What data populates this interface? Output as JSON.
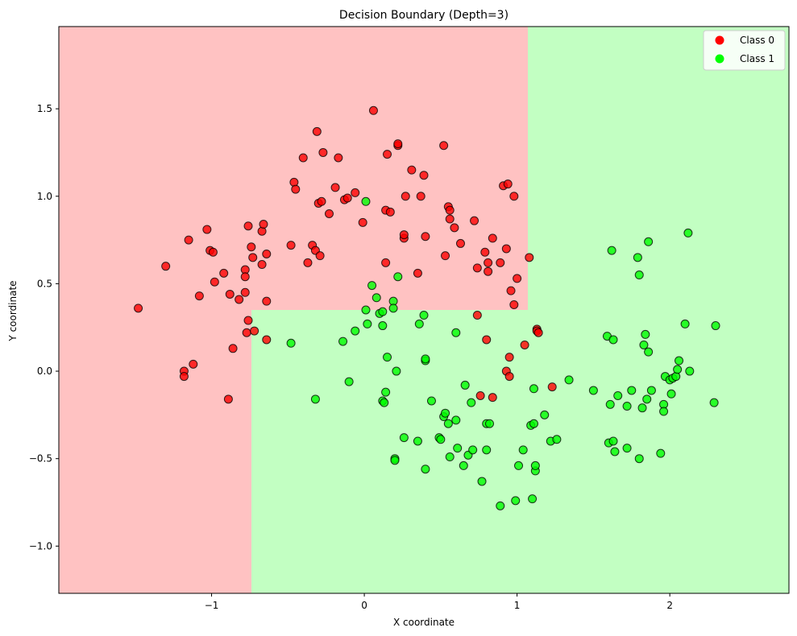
{
  "chart_data": {
    "type": "scatter",
    "title": "Decision Boundary (Depth=3)",
    "xlabel": "X coordinate",
    "ylabel": "Y coordinate",
    "xlim": [
      -2.0,
      2.78
    ],
    "ylim": [
      -1.27,
      1.97
    ],
    "xticks": [
      -1,
      0,
      1,
      2
    ],
    "xtick_labels": [
      "−1",
      "0",
      "1",
      "2"
    ],
    "yticks": [
      -1.0,
      -0.5,
      0.0,
      0.5,
      1.0,
      1.5
    ],
    "ytick_labels": [
      "−1.0",
      "−0.5",
      "0.0",
      "0.5",
      "1.0",
      "1.5"
    ],
    "grid": false,
    "legend_position": "top-right",
    "colors": {
      "class0": "#ff0000",
      "class1": "#00ff00",
      "region0": "#ffc2c2",
      "region1": "#c2ffc2"
    },
    "regions": [
      {
        "class": 0,
        "x": [
          -2.0,
          -0.74
        ],
        "y": [
          -1.27,
          1.97
        ]
      },
      {
        "class": 0,
        "x": [
          -0.74,
          1.07
        ],
        "y": [
          0.35,
          1.97
        ]
      },
      {
        "class": 1,
        "x": [
          1.07,
          2.78
        ],
        "y": [
          -1.27,
          1.97
        ]
      },
      {
        "class": 1,
        "x": [
          -0.74,
          1.07
        ],
        "y": [
          -1.27,
          0.35
        ]
      }
    ],
    "series": [
      {
        "name": "Class 0",
        "points": [
          [
            -1.48,
            0.36
          ],
          [
            -1.3,
            0.6
          ],
          [
            -1.18,
            0.0
          ],
          [
            -1.18,
            -0.03
          ],
          [
            -1.12,
            0.04
          ],
          [
            -1.15,
            0.75
          ],
          [
            -1.08,
            0.43
          ],
          [
            -1.03,
            0.81
          ],
          [
            -1.01,
            0.69
          ],
          [
            -0.99,
            0.68
          ],
          [
            -0.98,
            0.51
          ],
          [
            -0.92,
            0.56
          ],
          [
            -0.88,
            0.44
          ],
          [
            -0.89,
            -0.16
          ],
          [
            -0.86,
            0.13
          ],
          [
            -0.82,
            0.41
          ],
          [
            -0.78,
            0.58
          ],
          [
            -0.78,
            0.54
          ],
          [
            -0.78,
            0.45
          ],
          [
            -0.77,
            0.22
          ],
          [
            -0.76,
            0.29
          ],
          [
            -0.76,
            0.83
          ],
          [
            -0.74,
            0.71
          ],
          [
            -0.73,
            0.65
          ],
          [
            -0.72,
            0.23
          ],
          [
            -0.67,
            0.8
          ],
          [
            -0.66,
            0.84
          ],
          [
            -0.67,
            0.61
          ],
          [
            -0.64,
            0.67
          ],
          [
            -0.64,
            0.4
          ],
          [
            -0.64,
            0.18
          ],
          [
            -0.48,
            0.72
          ],
          [
            -0.46,
            1.08
          ],
          [
            -0.45,
            1.04
          ],
          [
            -0.4,
            1.22
          ],
          [
            -0.37,
            0.62
          ],
          [
            -0.34,
            0.72
          ],
          [
            -0.32,
            0.69
          ],
          [
            -0.31,
            1.37
          ],
          [
            -0.3,
            0.96
          ],
          [
            -0.28,
            0.97
          ],
          [
            -0.29,
            0.66
          ],
          [
            -0.27,
            1.25
          ],
          [
            -0.23,
            0.9
          ],
          [
            -0.19,
            1.05
          ],
          [
            -0.17,
            1.22
          ],
          [
            -0.13,
            0.98
          ],
          [
            -0.11,
            0.99
          ],
          [
            -0.06,
            1.02
          ],
          [
            -0.01,
            0.85
          ],
          [
            0.06,
            1.49
          ],
          [
            0.14,
            0.62
          ],
          [
            0.14,
            0.92
          ],
          [
            0.15,
            1.24
          ],
          [
            0.17,
            0.91
          ],
          [
            0.22,
            1.29
          ],
          [
            0.22,
            1.3
          ],
          [
            0.26,
            0.76
          ],
          [
            0.26,
            0.78
          ],
          [
            0.27,
            1.0
          ],
          [
            0.31,
            1.15
          ],
          [
            0.35,
            0.56
          ],
          [
            0.37,
            1.0
          ],
          [
            0.39,
            1.12
          ],
          [
            0.4,
            0.77
          ],
          [
            0.52,
            1.29
          ],
          [
            0.53,
            0.66
          ],
          [
            0.55,
            0.94
          ],
          [
            0.56,
            0.92
          ],
          [
            0.56,
            0.87
          ],
          [
            0.59,
            0.82
          ],
          [
            0.63,
            0.73
          ],
          [
            0.72,
            0.86
          ],
          [
            0.74,
            0.59
          ],
          [
            0.74,
            0.32
          ],
          [
            0.76,
            -0.14
          ],
          [
            0.79,
            0.68
          ],
          [
            0.8,
            0.18
          ],
          [
            0.81,
            0.57
          ],
          [
            0.81,
            0.62
          ],
          [
            0.84,
            0.76
          ],
          [
            0.84,
            -0.15
          ],
          [
            0.89,
            0.62
          ],
          [
            0.91,
            1.06
          ],
          [
            0.93,
            0.7
          ],
          [
            0.94,
            1.07
          ],
          [
            0.93,
            0.0
          ],
          [
            0.95,
            -0.03
          ],
          [
            0.95,
            0.08
          ],
          [
            0.96,
            0.46
          ],
          [
            0.98,
            0.38
          ],
          [
            0.98,
            1.0
          ],
          [
            1.0,
            0.53
          ],
          [
            1.05,
            0.15
          ],
          [
            1.08,
            0.65
          ],
          [
            1.13,
            0.24
          ],
          [
            1.13,
            0.23
          ],
          [
            1.23,
            -0.09
          ],
          [
            1.14,
            0.22
          ]
        ]
      },
      {
        "name": "Class 1",
        "points": [
          [
            -0.48,
            0.16
          ],
          [
            -0.32,
            -0.16
          ],
          [
            -0.14,
            0.17
          ],
          [
            -0.1,
            -0.06
          ],
          [
            -0.06,
            0.23
          ],
          [
            0.01,
            0.97
          ],
          [
            0.01,
            0.35
          ],
          [
            0.02,
            0.27
          ],
          [
            0.05,
            0.49
          ],
          [
            0.08,
            0.42
          ],
          [
            0.1,
            0.33
          ],
          [
            0.12,
            0.34
          ],
          [
            0.12,
            0.26
          ],
          [
            0.12,
            -0.17
          ],
          [
            0.13,
            -0.18
          ],
          [
            0.14,
            -0.12
          ],
          [
            0.15,
            0.08
          ],
          [
            0.19,
            0.4
          ],
          [
            0.19,
            0.36
          ],
          [
            0.2,
            -0.5
          ],
          [
            0.2,
            -0.51
          ],
          [
            0.21,
            0.0
          ],
          [
            0.22,
            0.54
          ],
          [
            0.26,
            -0.38
          ],
          [
            0.35,
            -0.4
          ],
          [
            0.36,
            0.27
          ],
          [
            0.39,
            0.32
          ],
          [
            0.4,
            0.06
          ],
          [
            0.4,
            0.07
          ],
          [
            0.4,
            -0.56
          ],
          [
            0.44,
            -0.17
          ],
          [
            0.49,
            -0.38
          ],
          [
            0.5,
            -0.39
          ],
          [
            0.52,
            -0.26
          ],
          [
            0.53,
            -0.24
          ],
          [
            0.55,
            -0.3
          ],
          [
            0.56,
            -0.49
          ],
          [
            0.6,
            0.22
          ],
          [
            0.6,
            -0.28
          ],
          [
            0.61,
            -0.44
          ],
          [
            0.65,
            -0.54
          ],
          [
            0.66,
            -0.08
          ],
          [
            0.68,
            -0.48
          ],
          [
            0.7,
            -0.18
          ],
          [
            0.71,
            -0.45
          ],
          [
            0.77,
            -0.63
          ],
          [
            0.8,
            -0.3
          ],
          [
            0.8,
            -0.45
          ],
          [
            0.82,
            -0.3
          ],
          [
            0.89,
            -0.77
          ],
          [
            0.99,
            -0.74
          ],
          [
            1.01,
            -0.54
          ],
          [
            1.04,
            -0.45
          ],
          [
            1.09,
            -0.31
          ],
          [
            1.1,
            -0.73
          ],
          [
            1.11,
            -0.3
          ],
          [
            1.11,
            -0.1
          ],
          [
            1.12,
            -0.57
          ],
          [
            1.12,
            -0.54
          ],
          [
            1.18,
            -0.25
          ],
          [
            1.22,
            -0.4
          ],
          [
            1.26,
            -0.39
          ],
          [
            1.34,
            -0.05
          ],
          [
            1.5,
            -0.11
          ],
          [
            1.59,
            0.2
          ],
          [
            1.6,
            -0.41
          ],
          [
            1.61,
            -0.19
          ],
          [
            1.62,
            0.69
          ],
          [
            1.63,
            0.18
          ],
          [
            1.63,
            -0.4
          ],
          [
            1.64,
            -0.46
          ],
          [
            1.66,
            -0.14
          ],
          [
            1.72,
            -0.2
          ],
          [
            1.72,
            -0.44
          ],
          [
            1.75,
            -0.11
          ],
          [
            1.79,
            0.65
          ],
          [
            1.8,
            0.55
          ],
          [
            1.8,
            -0.5
          ],
          [
            1.82,
            -0.21
          ],
          [
            1.83,
            0.15
          ],
          [
            1.84,
            0.21
          ],
          [
            1.85,
            -0.16
          ],
          [
            1.86,
            0.74
          ],
          [
            1.86,
            0.11
          ],
          [
            1.88,
            -0.11
          ],
          [
            1.94,
            -0.47
          ],
          [
            1.96,
            -0.19
          ],
          [
            1.96,
            -0.23
          ],
          [
            1.97,
            -0.03
          ],
          [
            2.0,
            -0.05
          ],
          [
            2.01,
            -0.13
          ],
          [
            2.02,
            -0.04
          ],
          [
            2.04,
            -0.03
          ],
          [
            2.05,
            0.01
          ],
          [
            2.06,
            0.06
          ],
          [
            2.1,
            0.27
          ],
          [
            2.12,
            0.79
          ],
          [
            2.13,
            -0.0
          ],
          [
            2.29,
            -0.18
          ],
          [
            2.3,
            0.26
          ]
        ]
      }
    ]
  }
}
